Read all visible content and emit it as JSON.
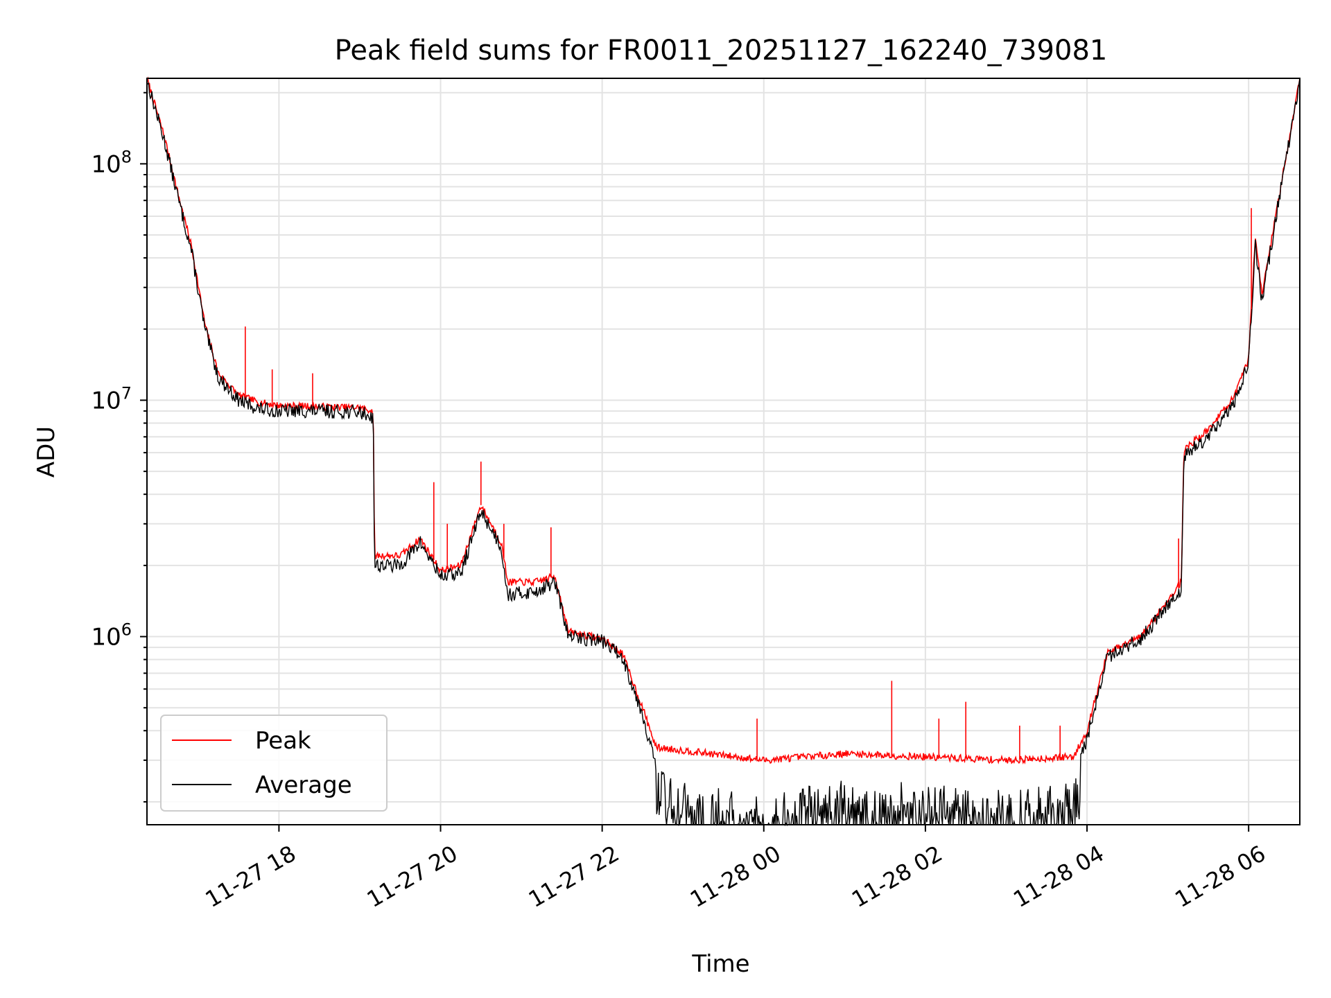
{
  "chart_data": {
    "type": "line",
    "title": "Peak field sums for FR0011_20251127_162240_739081",
    "xlabel": "Time",
    "ylabel": "ADU",
    "yscale": "log",
    "ylim": [
      160000,
      230000000
    ],
    "xlim": [
      "2025-11-27 16:22",
      "2025-11-28 06:38"
    ],
    "grid": true,
    "legend_position": "lower-left",
    "x_ticks": [
      {
        "t": "2025-11-27 18:00",
        "label": "11-27 18"
      },
      {
        "t": "2025-11-27 20:00",
        "label": "11-27 20"
      },
      {
        "t": "2025-11-27 22:00",
        "label": "11-27 22"
      },
      {
        "t": "2025-11-28 00:00",
        "label": "11-28 00"
      },
      {
        "t": "2025-11-28 02:00",
        "label": "11-28 02"
      },
      {
        "t": "2025-11-28 04:00",
        "label": "11-28 04"
      },
      {
        "t": "2025-11-28 06:00",
        "label": "11-28 06"
      }
    ],
    "y_ticks": [
      {
        "value": 1000000,
        "base": "10",
        "exp": "6"
      },
      {
        "value": 10000000,
        "base": "10",
        "exp": "7"
      },
      {
        "value": 100000000,
        "base": "10",
        "exp": "8"
      }
    ],
    "series": [
      {
        "name": "Peak",
        "color": "#ff0000",
        "points": [
          [
            "2025-11-27 16:22",
            230000000
          ],
          [
            "2025-11-27 16:35",
            130000000
          ],
          [
            "2025-11-27 16:45",
            75000000
          ],
          [
            "2025-11-27 16:55",
            45000000
          ],
          [
            "2025-11-27 17:05",
            21000000
          ],
          [
            "2025-11-27 17:15",
            13000000
          ],
          [
            "2025-11-27 17:30",
            10500000
          ],
          [
            "2025-11-27 17:45",
            9800000
          ],
          [
            "2025-11-27 18:00",
            9500000
          ],
          [
            "2025-11-27 18:30",
            9400000
          ],
          [
            "2025-11-27 19:00",
            9300000
          ],
          [
            "2025-11-27 19:10",
            9000000
          ],
          [
            "2025-11-27 19:11",
            2200000
          ],
          [
            "2025-11-27 19:30",
            2200000
          ],
          [
            "2025-11-27 19:45",
            2600000
          ],
          [
            "2025-11-27 20:00",
            1900000
          ],
          [
            "2025-11-27 20:15",
            2000000
          ],
          [
            "2025-11-27 20:30",
            3600000
          ],
          [
            "2025-11-27 20:45",
            2500000
          ],
          [
            "2025-11-27 20:50",
            1700000
          ],
          [
            "2025-11-27 21:10",
            1700000
          ],
          [
            "2025-11-27 21:25",
            1800000
          ],
          [
            "2025-11-27 21:35",
            1050000
          ],
          [
            "2025-11-27 22:00",
            980000
          ],
          [
            "2025-11-27 22:15",
            850000
          ],
          [
            "2025-11-27 22:30",
            500000
          ],
          [
            "2025-11-27 22:40",
            340000
          ],
          [
            "2025-11-27 23:00",
            330000
          ],
          [
            "2025-11-28 00:00",
            300000
          ],
          [
            "2025-11-28 01:00",
            320000
          ],
          [
            "2025-11-28 02:00",
            310000
          ],
          [
            "2025-11-28 03:00",
            300000
          ],
          [
            "2025-11-28 03:50",
            310000
          ],
          [
            "2025-11-28 04:00",
            400000
          ],
          [
            "2025-11-28 04:15",
            850000
          ],
          [
            "2025-11-28 04:40",
            1000000
          ],
          [
            "2025-11-28 05:10",
            1700000
          ],
          [
            "2025-11-28 05:12",
            6200000
          ],
          [
            "2025-11-28 05:30",
            7500000
          ],
          [
            "2025-11-28 05:50",
            10500000
          ],
          [
            "2025-11-28 06:00",
            15000000
          ],
          [
            "2025-11-28 06:05",
            50000000
          ],
          [
            "2025-11-28 06:10",
            28000000
          ],
          [
            "2025-11-28 06:20",
            60000000
          ],
          [
            "2025-11-28 06:38",
            230000000
          ]
        ],
        "spikes": [
          [
            "2025-11-27 17:35",
            20500000
          ],
          [
            "2025-11-27 17:55",
            13500000
          ],
          [
            "2025-11-27 18:25",
            13000000
          ],
          [
            "2025-11-27 19:55",
            4500000
          ],
          [
            "2025-11-27 20:05",
            3000000
          ],
          [
            "2025-11-27 20:30",
            5500000
          ],
          [
            "2025-11-27 20:47",
            3000000
          ],
          [
            "2025-11-27 21:22",
            2900000
          ],
          [
            "2025-11-27 23:55",
            450000
          ],
          [
            "2025-11-28 01:35",
            650000
          ],
          [
            "2025-11-28 02:10",
            450000
          ],
          [
            "2025-11-28 02:30",
            530000
          ],
          [
            "2025-11-28 03:10",
            420000
          ],
          [
            "2025-11-28 03:40",
            420000
          ],
          [
            "2025-11-28 05:08",
            2600000
          ],
          [
            "2025-11-28 06:02",
            65000000
          ]
        ]
      },
      {
        "name": "Average",
        "color": "#000000",
        "points": [
          [
            "2025-11-27 16:22",
            225000000
          ],
          [
            "2025-11-27 16:35",
            125000000
          ],
          [
            "2025-11-27 16:45",
            72000000
          ],
          [
            "2025-11-27 16:55",
            43000000
          ],
          [
            "2025-11-27 17:05",
            20000000
          ],
          [
            "2025-11-27 17:15",
            12500000
          ],
          [
            "2025-11-27 17:30",
            10000000
          ],
          [
            "2025-11-27 17:45",
            9200000
          ],
          [
            "2025-11-27 18:00",
            9000000
          ],
          [
            "2025-11-27 18:30",
            9000000
          ],
          [
            "2025-11-27 19:00",
            8900000
          ],
          [
            "2025-11-27 19:10",
            8500000
          ],
          [
            "2025-11-27 19:11",
            2000000
          ],
          [
            "2025-11-27 19:30",
            2000000
          ],
          [
            "2025-11-27 19:45",
            2500000
          ],
          [
            "2025-11-27 20:00",
            1800000
          ],
          [
            "2025-11-27 20:15",
            1850000
          ],
          [
            "2025-11-27 20:30",
            3400000
          ],
          [
            "2025-11-27 20:45",
            2400000
          ],
          [
            "2025-11-27 20:50",
            1500000
          ],
          [
            "2025-11-27 21:10",
            1550000
          ],
          [
            "2025-11-27 21:25",
            1700000
          ],
          [
            "2025-11-27 21:35",
            1000000
          ],
          [
            "2025-11-27 22:00",
            960000
          ],
          [
            "2025-11-27 22:15",
            820000
          ],
          [
            "2025-11-27 22:30",
            470000
          ],
          [
            "2025-11-27 22:40",
            280000
          ],
          [
            "2025-11-27 23:00",
            250000
          ],
          [
            "2025-11-28 00:00",
            220000
          ],
          [
            "2025-11-28 01:00",
            250000
          ],
          [
            "2025-11-28 02:00",
            240000
          ],
          [
            "2025-11-28 03:00",
            230000
          ],
          [
            "2025-11-28 03:50",
            250000
          ],
          [
            "2025-11-28 04:00",
            370000
          ],
          [
            "2025-11-28 04:15",
            820000
          ],
          [
            "2025-11-28 04:40",
            980000
          ],
          [
            "2025-11-28 05:10",
            1600000
          ],
          [
            "2025-11-28 05:12",
            5800000
          ],
          [
            "2025-11-28 05:30",
            7000000
          ],
          [
            "2025-11-28 05:50",
            10000000
          ],
          [
            "2025-11-28 06:00",
            14500000
          ],
          [
            "2025-11-28 06:05",
            45000000
          ],
          [
            "2025-11-28 06:10",
            26000000
          ],
          [
            "2025-11-28 06:20",
            58000000
          ],
          [
            "2025-11-28 06:38",
            228000000
          ]
        ],
        "noise_band": {
          "from": "2025-11-27 22:40",
          "to": "2025-11-28 03:55",
          "min": 160000
        }
      }
    ]
  }
}
